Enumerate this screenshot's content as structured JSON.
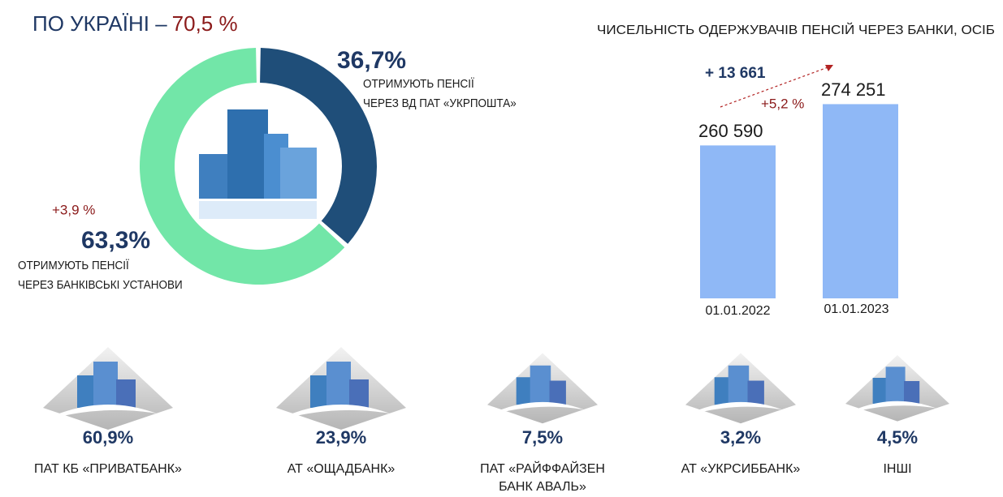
{
  "chart_data": [
    {
      "type": "pie",
      "title": "ПО УКРАЇНІ –",
      "total_label": "70,5 %",
      "categories": [
        "ОТРИМУЮТЬ ПЕНСІЇ\nЧЕРЕЗ ВД ПАТ «УКРПОШТА»",
        "ОТРИМУЮТЬ ПЕНСІЇ\nЧЕРЕЗ БАНКІВСЬКІ УСТАНОВИ"
      ],
      "values": [
        36.7,
        63.3
      ],
      "value_labels": [
        "36,7%",
        "63,3%"
      ],
      "colors": [
        "#1f4e79",
        "#72e6a8"
      ],
      "annotation": "+3,9 %"
    },
    {
      "type": "bar",
      "title": "ЧИСЕЛЬНІСТЬ ОДЕРЖУВАЧІВ ПЕНСІЙ ЧЕРЕЗ БАНКИ, ОСІБ",
      "categories": [
        "01.01.2022",
        "01.01.2023"
      ],
      "values": [
        260590,
        274251
      ],
      "value_labels": [
        "260 590",
        "274 251"
      ],
      "color": "#8fb8f6",
      "ylim": [
        210000,
        280000
      ],
      "annotations": [
        "+ 13 661",
        "+5,2 %"
      ]
    }
  ],
  "banks": [
    {
      "share": "60,9%",
      "name": "ПАТ КБ «ПРИВАТБАНК»"
    },
    {
      "share": "23,9%",
      "name": "АТ «ОЩАДБАНК»"
    },
    {
      "share": "7,5%",
      "name": "ПАТ «РАЙФФАЙЗЕН\nБАНК АВАЛЬ»"
    },
    {
      "share": "3,2%",
      "name": "АТ «УКРСИББАНК»"
    },
    {
      "share": "4,5%",
      "name": "ІНШІ"
    }
  ]
}
